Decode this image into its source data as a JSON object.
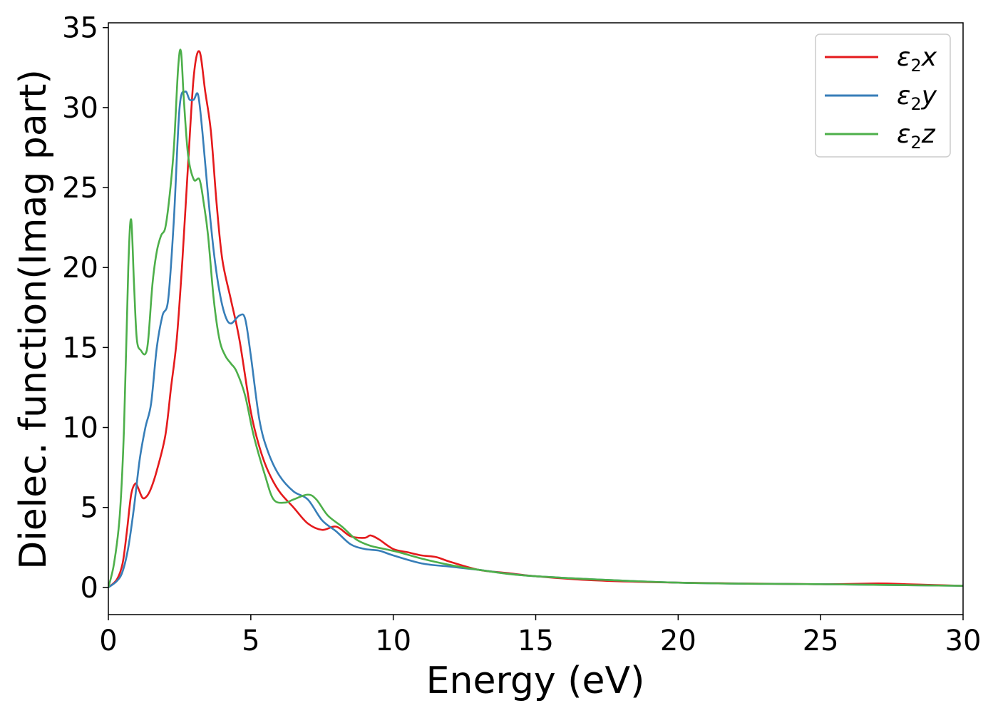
{
  "chart_data": {
    "type": "line",
    "xlabel": "Energy (eV)",
    "ylabel": "Dielec. function(Imag part)",
    "xlim": [
      0,
      30
    ],
    "ylim": [
      -1.7,
      35.3
    ],
    "xticks": [
      0,
      5,
      10,
      15,
      20,
      25,
      30
    ],
    "yticks": [
      0,
      5,
      10,
      15,
      20,
      25,
      30,
      35
    ],
    "grid": false,
    "legend_position": "top-right",
    "series": [
      {
        "name": "ε2x",
        "label_base": "ε",
        "label_sub": "2",
        "label_suffix": "x",
        "color": "#e41a1c",
        "x": [
          0,
          0.3,
          0.5,
          0.65,
          0.8,
          0.95,
          1.05,
          1.2,
          1.35,
          1.5,
          1.7,
          2.0,
          2.2,
          2.4,
          2.6,
          2.8,
          3.0,
          3.2,
          3.4,
          3.6,
          3.8,
          4.0,
          4.3,
          4.6,
          5.0,
          5.3,
          5.6,
          6.0,
          6.5,
          7.0,
          7.5,
          8.0,
          8.5,
          9.0,
          9.2,
          9.5,
          10.0,
          10.5,
          11.0,
          11.5,
          12.0,
          13.0,
          14.0,
          15.0,
          17.0,
          20.0,
          25.0,
          27.0,
          28.0,
          29.0,
          30.0
        ],
        "y": [
          0,
          0.5,
          1.5,
          3.5,
          5.8,
          6.5,
          6.2,
          5.6,
          5.7,
          6.2,
          7.3,
          9.5,
          12.5,
          15.5,
          20.5,
          26.5,
          32.0,
          33.5,
          31.0,
          28.5,
          24.0,
          20.5,
          18.0,
          15.5,
          11.0,
          8.8,
          7.3,
          6.0,
          5.0,
          4.0,
          3.6,
          3.8,
          3.2,
          3.1,
          3.25,
          3.0,
          2.4,
          2.2,
          2.0,
          1.9,
          1.6,
          1.1,
          0.9,
          0.7,
          0.45,
          0.3,
          0.2,
          0.25,
          0.2,
          0.15,
          0.1
        ]
      },
      {
        "name": "ε2y",
        "label_base": "ε",
        "label_sub": "2",
        "label_suffix": "y",
        "color": "#377eb8",
        "x": [
          0,
          0.3,
          0.5,
          0.7,
          0.9,
          1.1,
          1.3,
          1.5,
          1.7,
          1.9,
          2.1,
          2.3,
          2.5,
          2.7,
          2.85,
          3.0,
          3.15,
          3.3,
          3.5,
          3.7,
          3.9,
          4.1,
          4.3,
          4.6,
          4.8,
          5.0,
          5.3,
          5.6,
          6.0,
          6.5,
          7.0,
          7.5,
          8.0,
          8.5,
          9.0,
          9.5,
          10.0,
          11.0,
          12.0,
          13.0,
          15.0,
          20.0,
          25.0,
          30.0
        ],
        "y": [
          0,
          0.4,
          1.0,
          2.5,
          5.0,
          8.0,
          10.0,
          11.5,
          15.0,
          17.0,
          18.0,
          23.0,
          30.0,
          31.0,
          30.5,
          30.5,
          30.8,
          28.5,
          24.5,
          21.0,
          18.5,
          17.0,
          16.5,
          17.0,
          16.8,
          14.5,
          10.5,
          8.5,
          7.0,
          6.0,
          5.5,
          4.2,
          3.5,
          2.7,
          2.4,
          2.3,
          2.0,
          1.5,
          1.3,
          1.1,
          0.7,
          0.3,
          0.2,
          0.1
        ]
      },
      {
        "name": "ε2z",
        "label_base": "ε",
        "label_sub": "2",
        "label_suffix": "z",
        "color": "#4daf4a",
        "x": [
          0,
          0.2,
          0.4,
          0.55,
          0.7,
          0.8,
          0.9,
          1.0,
          1.15,
          1.3,
          1.4,
          1.55,
          1.7,
          1.85,
          2.0,
          2.15,
          2.3,
          2.45,
          2.55,
          2.65,
          2.8,
          3.0,
          3.2,
          3.35,
          3.5,
          3.7,
          3.9,
          4.1,
          4.3,
          4.5,
          4.8,
          5.1,
          5.5,
          5.8,
          6.2,
          6.5,
          7.0,
          7.3,
          7.7,
          8.2,
          8.7,
          9.2,
          9.7,
          10.2,
          11.0,
          12.0,
          13.0,
          15.0,
          20.0,
          25.0,
          30.0
        ],
        "y": [
          0,
          1.5,
          4.5,
          10.0,
          20.0,
          23.0,
          19.0,
          15.5,
          14.8,
          14.6,
          15.5,
          19.0,
          21.0,
          22.0,
          22.5,
          24.5,
          27.5,
          32.5,
          33.5,
          30.5,
          27.0,
          25.5,
          25.5,
          24.0,
          22.0,
          18.0,
          15.5,
          14.5,
          14.0,
          13.5,
          12.0,
          9.5,
          7.0,
          5.5,
          5.3,
          5.5,
          5.8,
          5.5,
          4.5,
          3.8,
          3.0,
          2.6,
          2.4,
          2.2,
          1.8,
          1.4,
          1.1,
          0.7,
          0.3,
          0.2,
          0.1
        ]
      }
    ]
  }
}
